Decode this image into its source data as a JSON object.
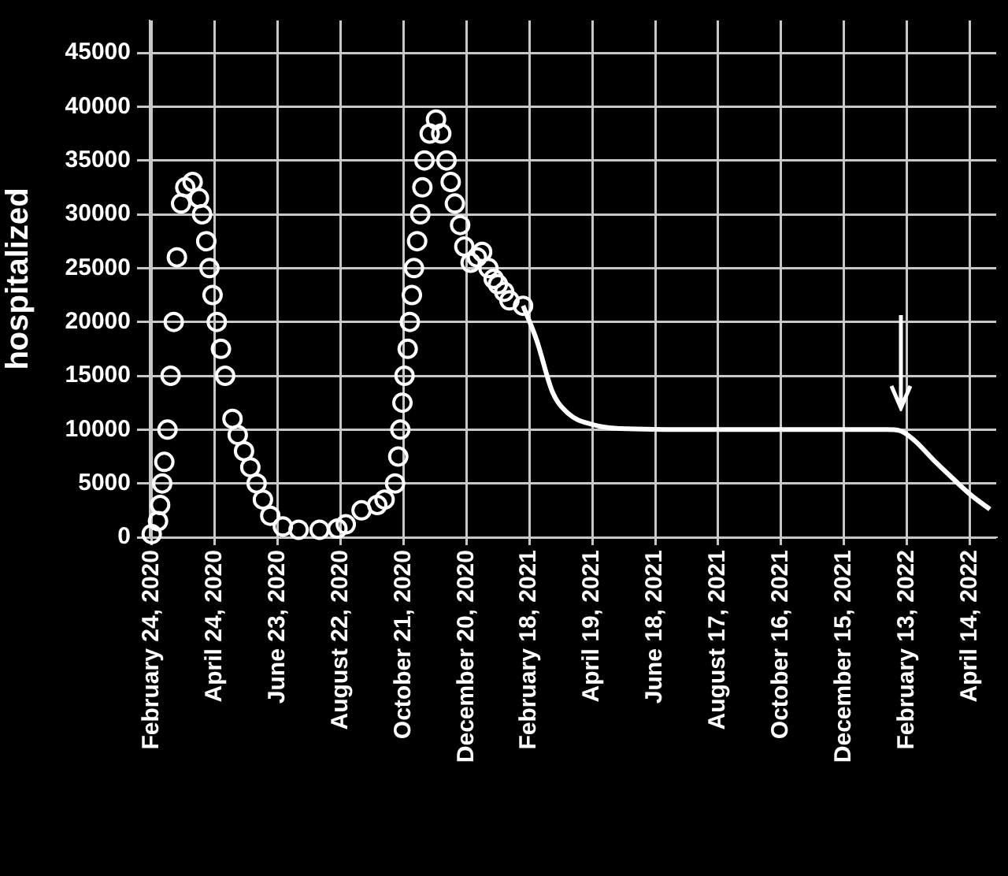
{
  "chart_data": {
    "type": "scatter",
    "ylabel": "hospitalized",
    "xlim": [
      "2020-02-22",
      "2022-05-09"
    ],
    "ylim": [
      0,
      48000
    ],
    "yticks": [
      0,
      5000,
      10000,
      15000,
      20000,
      25000,
      30000,
      35000,
      40000,
      45000
    ],
    "xticks": [
      {
        "value": "2020-02-24",
        "label": "February 24, 2020"
      },
      {
        "value": "2020-04-24",
        "label": "April 24, 2020"
      },
      {
        "value": "2020-06-23",
        "label": "June 23, 2020"
      },
      {
        "value": "2020-08-22",
        "label": "August 22, 2020"
      },
      {
        "value": "2020-10-21",
        "label": "October 21, 2020"
      },
      {
        "value": "2020-12-20",
        "label": "December 20, 2020"
      },
      {
        "value": "2021-02-18",
        "label": "February 18, 2021"
      },
      {
        "value": "2021-04-19",
        "label": "April 19, 2021"
      },
      {
        "value": "2021-06-18",
        "label": "June 18, 2021"
      },
      {
        "value": "2021-08-17",
        "label": "August 17, 2021"
      },
      {
        "value": "2021-10-16",
        "label": "October 16, 2021"
      },
      {
        "value": "2021-12-15",
        "label": "December 15, 2021"
      },
      {
        "value": "2022-02-13",
        "label": "February 13, 2022"
      },
      {
        "value": "2022-04-14",
        "label": "April 14, 2022"
      }
    ],
    "grid": true,
    "legend": false,
    "series": [
      {
        "marker": "circle",
        "color": "#ffffff",
        "x": [
          "2020-02-24",
          "2020-03-01",
          "2020-03-03",
          "2020-03-05",
          "2020-03-07",
          "2020-03-10",
          "2020-03-13",
          "2020-03-16",
          "2020-03-19",
          "2020-03-23",
          "2020-03-27",
          "2020-04-03",
          "2020-04-09",
          "2020-04-12",
          "2020-04-16",
          "2020-04-19",
          "2020-04-22",
          "2020-04-26",
          "2020-04-30",
          "2020-05-04",
          "2020-05-11",
          "2020-05-16",
          "2020-05-22",
          "2020-05-28",
          "2020-06-03",
          "2020-06-09",
          "2020-06-16",
          "2020-06-28",
          "2020-07-13",
          "2020-08-02",
          "2020-08-19",
          "2020-08-27",
          "2020-09-11",
          "2020-09-26",
          "2020-10-03",
          "2020-10-13",
          "2020-10-16",
          "2020-10-18",
          "2020-10-20",
          "2020-10-22",
          "2020-10-25",
          "2020-10-27",
          "2020-10-29",
          "2020-10-31",
          "2020-11-03",
          "2020-11-06",
          "2020-11-08",
          "2020-11-10",
          "2020-11-15",
          "2020-11-21",
          "2020-11-26",
          "2020-12-01",
          "2020-12-05",
          "2020-12-09",
          "2020-12-14",
          "2020-12-18",
          "2020-12-24",
          "2020-12-30",
          "2021-01-04",
          "2021-01-10",
          "2021-01-15",
          "2021-01-19",
          "2021-01-25",
          "2021-01-30",
          "2021-02-12"
        ],
        "values": [
          300,
          1500,
          3000,
          5000,
          7000,
          10000,
          15000,
          20000,
          26000,
          31000,
          32500,
          33000,
          31500,
          30000,
          27500,
          25000,
          22500,
          20000,
          17500,
          15000,
          11000,
          9500,
          8000,
          6500,
          5000,
          3500,
          2000,
          1000,
          700,
          700,
          800,
          1200,
          2500,
          3000,
          3500,
          5000,
          7500,
          10000,
          12500,
          15000,
          17500,
          20000,
          22500,
          25000,
          27500,
          30000,
          32500,
          35000,
          37500,
          38800,
          37500,
          35000,
          33000,
          31000,
          29000,
          27000,
          25500,
          26000,
          26500,
          25000,
          24000,
          23500,
          22800,
          22000,
          21500
        ]
      },
      {
        "type": "line",
        "marker": "none",
        "color": "#ffffff",
        "x": [
          "2021-02-12",
          "2021-02-25",
          "2021-03-12",
          "2021-03-27",
          "2021-04-18",
          "2021-05-15",
          "2021-08-01",
          "2021-11-01",
          "2022-01-25",
          "2022-02-06",
          "2022-02-20",
          "2022-03-10",
          "2022-03-25",
          "2022-04-14",
          "2022-05-03"
        ],
        "values": [
          21500,
          18300,
          13500,
          11500,
          10500,
          10100,
          10000,
          10000,
          10000,
          9900,
          9000,
          7200,
          5800,
          4000,
          2600
        ]
      }
    ]
  }
}
